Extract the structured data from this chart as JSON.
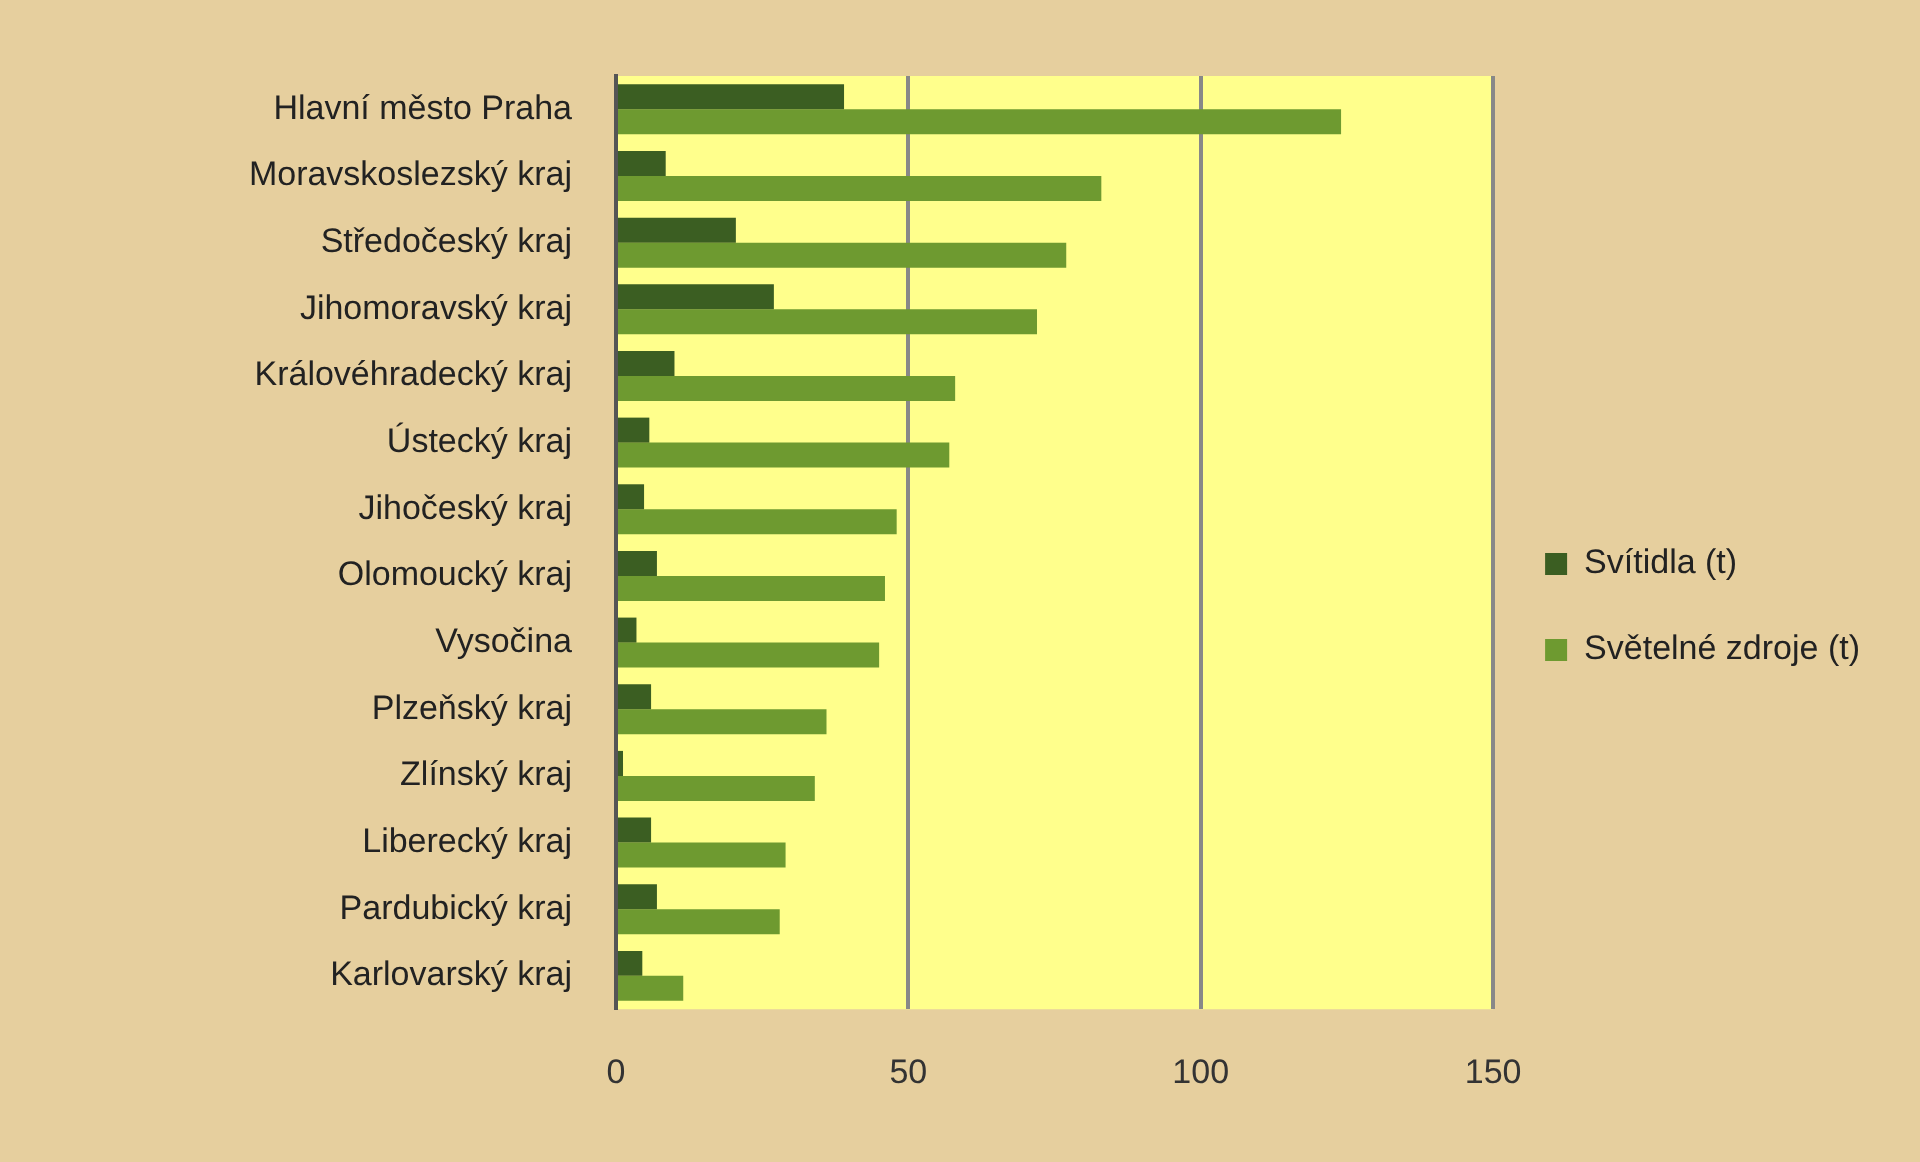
{
  "chart_data": {
    "type": "bar",
    "orientation": "horizontal",
    "categories": [
      "Hlavní město Praha",
      "Moravskoslezský kraj",
      "Středočeský kraj",
      "Jihomoravský kraj",
      "Královéhradecký kraj",
      "Ústecký kraj",
      "Jihočeský kraj",
      "Olomoucký kraj",
      "Vysočina",
      "Plzeňský kraj",
      "Zlínský kraj",
      "Liberecký kraj",
      "Pardubický kraj",
      "Karlovarský kraj"
    ],
    "series": [
      {
        "name": "Svítidla (t)",
        "color": "#3b5e22",
        "values": [
          39,
          8.5,
          20.5,
          27,
          10,
          5.7,
          4.8,
          7,
          3.5,
          6,
          1.2,
          6,
          7,
          4.5
        ]
      },
      {
        "name": "Světelné zdroje (t)",
        "color": "#6e9a30",
        "values": [
          124,
          83,
          77,
          72,
          58,
          57,
          48,
          46,
          45,
          36,
          34,
          29,
          28,
          11.5
        ]
      }
    ],
    "xlim": [
      0,
      150
    ],
    "xticks": [
      0,
      50,
      100,
      150
    ],
    "grid": "x",
    "legend": "right"
  }
}
